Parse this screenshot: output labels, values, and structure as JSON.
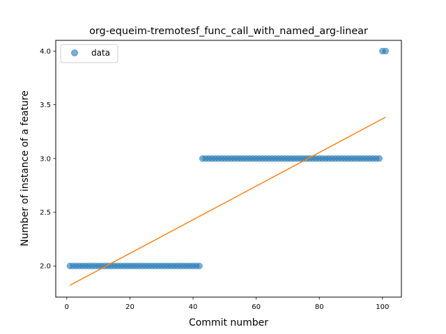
{
  "chart_data": {
    "type": "scatter",
    "title": "org-equeim-tremotesf_func_call_with_named_arg-linear",
    "xlabel": "Commit number",
    "ylabel": "Number of instance of a feature",
    "xlim": [
      -3.5,
      106
    ],
    "ylim": [
      1.71,
      4.1
    ],
    "xticks": [
      0,
      20,
      40,
      60,
      80,
      100
    ],
    "yticks": [
      2.0,
      2.5,
      3.0,
      3.5,
      4.0
    ],
    "xtick_labels": [
      "0",
      "20",
      "40",
      "60",
      "80",
      "100"
    ],
    "ytick_labels": [
      "2.0",
      "2.5",
      "3.0",
      "3.5",
      "4.0"
    ],
    "grid": false,
    "legend_position": "top-left",
    "series": [
      {
        "name": "data",
        "kind": "scatter",
        "color": "#1f77b4",
        "segments": [
          {
            "x_start": 1,
            "x_end": 42,
            "y": 2.0
          },
          {
            "x_start": 43,
            "x_end": 99,
            "y": 3.0
          },
          {
            "x_start": 100,
            "x_end": 101,
            "y": 4.0
          }
        ]
      },
      {
        "kind": "line",
        "color": "#ff7f0e",
        "x": [
          1,
          101
        ],
        "y": [
          1.82,
          3.385
        ]
      }
    ]
  }
}
